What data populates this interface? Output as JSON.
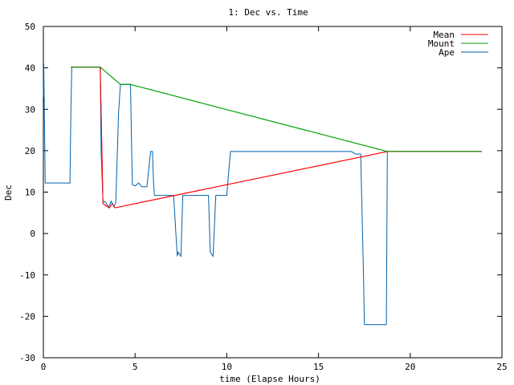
{
  "chart_data": {
    "type": "line",
    "title": "1: Dec vs. Time",
    "xlabel": "time (Elapse Hours)",
    "ylabel": "Dec",
    "xlim": [
      0,
      25
    ],
    "ylim": [
      -30,
      50
    ],
    "xticks": [
      0,
      5,
      10,
      15,
      20,
      25
    ],
    "yticks": [
      -30,
      -20,
      -10,
      0,
      10,
      20,
      30,
      40,
      50
    ],
    "grid": false,
    "legend": "top-right",
    "series": [
      {
        "name": "Mean",
        "color": "#ff0000",
        "x": [
          1.5,
          3.1,
          3.25,
          3.6,
          3.75,
          3.9,
          18.75,
          23.9
        ],
        "y": [
          40.2,
          40.2,
          7.2,
          6.2,
          7.2,
          6.2,
          19.8,
          19.8
        ]
      },
      {
        "name": "Mount",
        "color": "#00a000",
        "x": [
          1.5,
          3.1,
          4.2,
          4.75,
          18.75,
          23.9
        ],
        "y": [
          40.2,
          40.2,
          36.0,
          36.0,
          19.8,
          19.8
        ]
      },
      {
        "name": "Ape",
        "color": "#0060ad",
        "x": [
          0,
          0.02,
          0.1,
          1.45,
          1.5,
          1.55,
          3.1,
          3.15,
          3.25,
          3.4,
          3.55,
          3.7,
          3.85,
          3.95,
          4.1,
          4.2,
          4.75,
          4.8,
          4.85,
          5.0,
          5.2,
          5.35,
          5.5,
          5.65,
          5.8,
          5.85,
          5.95,
          6.0,
          6.05,
          6.1,
          7.1,
          7.3,
          7.35,
          7.5,
          7.6,
          7.7,
          9.0,
          9.1,
          9.25,
          9.4,
          9.5,
          10.0,
          10.05,
          10.2,
          16.8,
          17.0,
          17.3,
          17.45,
          17.5,
          18.5,
          18.7,
          18.75,
          23.9
        ],
        "y": [
          33,
          41,
          12.2,
          12.2,
          30,
          40.2,
          40.2,
          20,
          7.8,
          7.5,
          6.3,
          7.8,
          6.5,
          7.5,
          29,
          36,
          36,
          24,
          11.8,
          11.5,
          12.2,
          11.3,
          11.3,
          11.3,
          18,
          19.8,
          19.8,
          13,
          9.2,
          9.2,
          9.2,
          -5.5,
          -4.5,
          -5.5,
          9.2,
          9.2,
          9.2,
          -4.5,
          -5.5,
          9.2,
          9.2,
          9.2,
          12,
          19.8,
          19.8,
          19.2,
          19.2,
          -10,
          -22,
          -22,
          -22,
          19.8,
          19.8
        ]
      }
    ]
  }
}
